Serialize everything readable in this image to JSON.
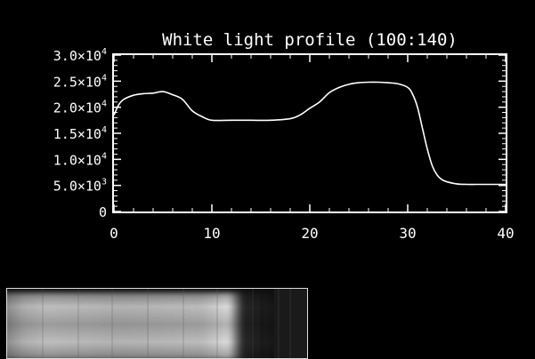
{
  "chart_data": {
    "type": "line",
    "title": "White light profile (100:140)",
    "xlabel": "",
    "ylabel": "",
    "xlim": [
      0,
      40
    ],
    "ylim": [
      0,
      30000
    ],
    "grid": false,
    "x_ticks": [
      0,
      10,
      20,
      30,
      40
    ],
    "x_tick_labels": [
      "0",
      "10",
      "20",
      "30",
      "40"
    ],
    "y_ticks": [
      {
        "value": 0,
        "mantissa": "0",
        "exponent": ""
      },
      {
        "value": 5000,
        "mantissa": "5.0×10",
        "exponent": "3"
      },
      {
        "value": 10000,
        "mantissa": "1.0×10",
        "exponent": "4"
      },
      {
        "value": 15000,
        "mantissa": "1.5×10",
        "exponent": "4"
      },
      {
        "value": 20000,
        "mantissa": "2.0×10",
        "exponent": "4"
      },
      {
        "value": 25000,
        "mantissa": "2.5×10",
        "exponent": "4"
      },
      {
        "value": 30000,
        "mantissa": "3.0×10",
        "exponent": "4"
      }
    ],
    "series": [
      {
        "color": "#ffffff",
        "x": [
          0,
          0.5,
          1,
          2,
          3,
          4,
          5,
          6,
          7,
          8,
          9,
          10,
          12,
          14,
          16,
          18,
          19,
          20,
          21,
          22,
          23,
          24,
          25,
          26,
          27,
          28,
          29,
          30,
          30.5,
          31,
          31.5,
          32,
          32.5,
          33,
          33.5,
          34,
          35,
          36,
          37,
          38,
          39,
          40
        ],
        "y": [
          18500,
          20500,
          21500,
          22300,
          22600,
          22700,
          23000,
          22400,
          21500,
          19300,
          18200,
          17500,
          17500,
          17500,
          17500,
          17800,
          18500,
          19800,
          21000,
          22800,
          23800,
          24400,
          24700,
          24800,
          24800,
          24700,
          24500,
          23800,
          22500,
          20000,
          16000,
          12000,
          8800,
          7000,
          6100,
          5700,
          5300,
          5200,
          5200,
          5200,
          5200,
          5200
        ]
      }
    ]
  },
  "image_panel": {
    "name": "white-light-image-strip"
  }
}
